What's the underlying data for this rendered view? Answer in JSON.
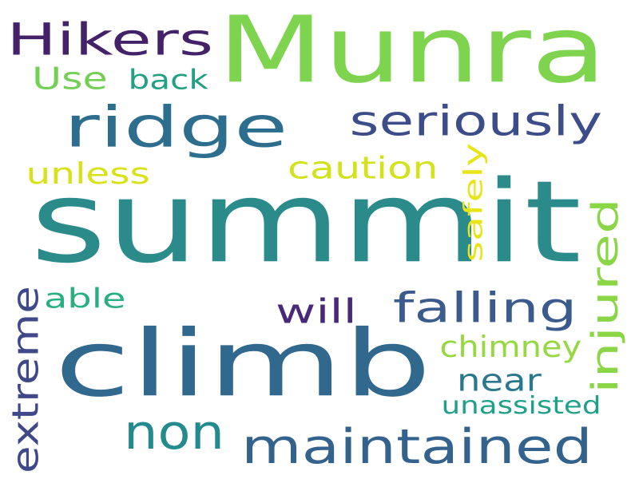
{
  "words": [
    {
      "text": "summit",
      "color": "#2b8a8a"
    },
    {
      "text": "Munra",
      "color": "#7ed34f"
    },
    {
      "text": "climb",
      "color": "#31688e"
    },
    {
      "text": "ridge",
      "color": "#2d6e8e"
    },
    {
      "text": "Hikers",
      "color": "#44226a"
    },
    {
      "text": "seriously",
      "color": "#3d4d8a"
    },
    {
      "text": "maintained",
      "color": "#33638d"
    },
    {
      "text": "non",
      "color": "#238a8d"
    },
    {
      "text": "falling",
      "color": "#3a5b8c"
    },
    {
      "text": "injured",
      "color": "#8bd646"
    },
    {
      "text": "extreme",
      "color": "#3f4889"
    },
    {
      "text": "Use",
      "color": "#73d055"
    },
    {
      "text": "back",
      "color": "#23a083"
    },
    {
      "text": "caution",
      "color": "#d2e21b"
    },
    {
      "text": "safely",
      "color": "#e7e419"
    },
    {
      "text": "unless",
      "color": "#d8e219"
    },
    {
      "text": "able",
      "color": "#29af7f"
    },
    {
      "text": "will",
      "color": "#482878"
    },
    {
      "text": "chimney",
      "color": "#95d840"
    },
    {
      "text": "near",
      "color": "#2a788e"
    },
    {
      "text": "unassisted",
      "color": "#1fa188"
    }
  ]
}
